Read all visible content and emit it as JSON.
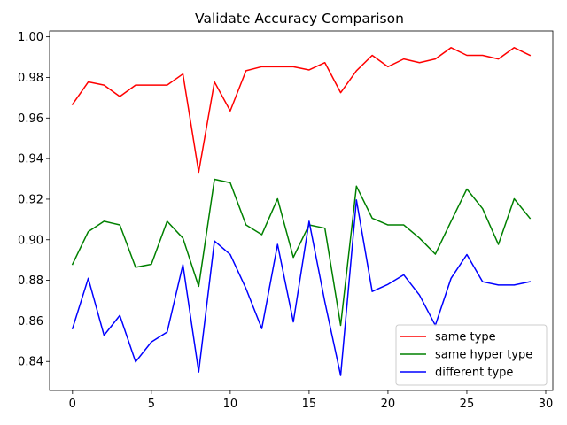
{
  "chart_data": {
    "type": "line",
    "title": "Validate Accuracy Comparison",
    "xlabel": "",
    "ylabel": "",
    "xlim": [
      -1.45,
      30.45
    ],
    "ylim": [
      0.8257,
      1.0029
    ],
    "xticks": [
      0,
      5,
      10,
      15,
      20,
      25,
      30
    ],
    "yticks": [
      0.84,
      0.86,
      0.88,
      0.9,
      0.92,
      0.94,
      0.96,
      0.98,
      1.0
    ],
    "ytick_labels": [
      "0.84",
      "0.86",
      "0.88",
      "0.90",
      "0.92",
      "0.94",
      "0.96",
      "0.98",
      "1.00"
    ],
    "grid": false,
    "legend_position": "lower-right",
    "x": [
      0,
      1,
      2,
      3,
      4,
      5,
      6,
      7,
      8,
      9,
      10,
      11,
      12,
      13,
      14,
      15,
      16,
      17,
      18,
      19,
      20,
      21,
      22,
      23,
      24,
      25,
      26,
      27,
      28,
      29
    ],
    "series": [
      {
        "name": "same type",
        "color": "#ff0000",
        "values": [
          0.9667,
          0.9778,
          0.9762,
          0.9706,
          0.9762,
          0.9762,
          0.9762,
          0.9817,
          0.9333,
          0.9778,
          0.9635,
          0.9833,
          0.9853,
          0.9853,
          0.9853,
          0.9837,
          0.9873,
          0.9725,
          0.9833,
          0.9909,
          0.9853,
          0.9891,
          0.9873,
          0.9891,
          0.9947,
          0.9909,
          0.9909,
          0.9891,
          0.9947,
          0.9909
        ]
      },
      {
        "name": "same hyper type",
        "color": "#008000",
        "values": [
          0.8879,
          0.904,
          0.9091,
          0.9073,
          0.8864,
          0.8879,
          0.9091,
          0.9008,
          0.877,
          0.9298,
          0.9281,
          0.9073,
          0.9025,
          0.9202,
          0.8913,
          0.9073,
          0.9057,
          0.8578,
          0.9264,
          0.9106,
          0.9073,
          0.9073,
          0.9008,
          0.8929,
          0.9091,
          0.925,
          0.9153,
          0.8977,
          0.9202,
          0.9106
        ]
      },
      {
        "name": "different type",
        "color": "#0000ff",
        "values": [
          0.8562,
          0.881,
          0.8529,
          0.8627,
          0.8398,
          0.8496,
          0.8545,
          0.8877,
          0.8348,
          0.8994,
          0.8927,
          0.8759,
          0.8562,
          0.8977,
          0.8595,
          0.9091,
          0.8693,
          0.8331,
          0.9196,
          0.8745,
          0.878,
          0.8827,
          0.8727,
          0.8578,
          0.881,
          0.8927,
          0.8793,
          0.8777,
          0.8777,
          0.8793
        ]
      }
    ]
  }
}
